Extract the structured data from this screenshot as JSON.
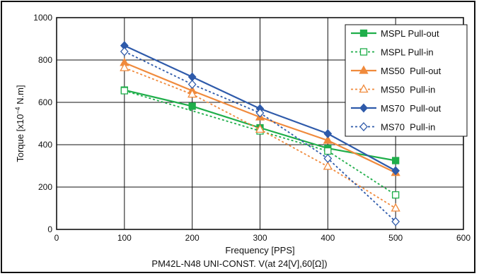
{
  "chart_data": {
    "type": "line",
    "caption": "PM42L-N48 UNI-CONST. V(at 24[V],60[Ω])",
    "xlabel": "Frequency [PPS]",
    "ylabel_parts": {
      "base": "Torque [x10",
      "exp": "−4",
      "unit": " N.m]"
    },
    "xlim": [
      0,
      600
    ],
    "ylim": [
      0,
      1000
    ],
    "xticks": [
      0,
      100,
      200,
      300,
      400,
      500,
      600
    ],
    "yticks": [
      0,
      200,
      400,
      600,
      800,
      1000
    ],
    "grid": true,
    "legend_position": "top-right",
    "series": [
      {
        "name": "MSPL Pull-out",
        "color": "#1fae4a",
        "dash": "solid",
        "marker": "square",
        "filled": true,
        "x": [
          100,
          200,
          300,
          400,
          500
        ],
        "y": [
          658,
          582,
          480,
          383,
          325
        ]
      },
      {
        "name": "MSPL Pull-in",
        "color": "#1fae4a",
        "dash": "dotted",
        "marker": "square",
        "filled": false,
        "x": [
          100,
          300,
          400,
          500
        ],
        "y": [
          655,
          465,
          370,
          163
        ]
      },
      {
        "name": "MS50  Pull-out",
        "color": "#f08a3c",
        "dash": "solid",
        "marker": "triangle",
        "filled": true,
        "x": [
          100,
          200,
          300,
          400,
          500
        ],
        "y": [
          787,
          655,
          530,
          420,
          268
        ]
      },
      {
        "name": "MS50  Pull-in",
        "color": "#f08a3c",
        "dash": "dotted",
        "marker": "triangle",
        "filled": false,
        "x": [
          100,
          200,
          300,
          400,
          500
        ],
        "y": [
          763,
          638,
          472,
          297,
          100
        ]
      },
      {
        "name": "MS70  Pull-out",
        "color": "#2e5aaa",
        "dash": "solid",
        "marker": "diamond",
        "filled": true,
        "x": [
          100,
          200,
          300,
          400,
          500
        ],
        "y": [
          868,
          720,
          570,
          452,
          277
        ]
      },
      {
        "name": "MS70  Pull-in",
        "color": "#2e5aaa",
        "dash": "dotted",
        "marker": "diamond",
        "filled": false,
        "x": [
          100,
          200,
          300,
          400,
          500
        ],
        "y": [
          840,
          685,
          550,
          335,
          37
        ]
      }
    ]
  }
}
